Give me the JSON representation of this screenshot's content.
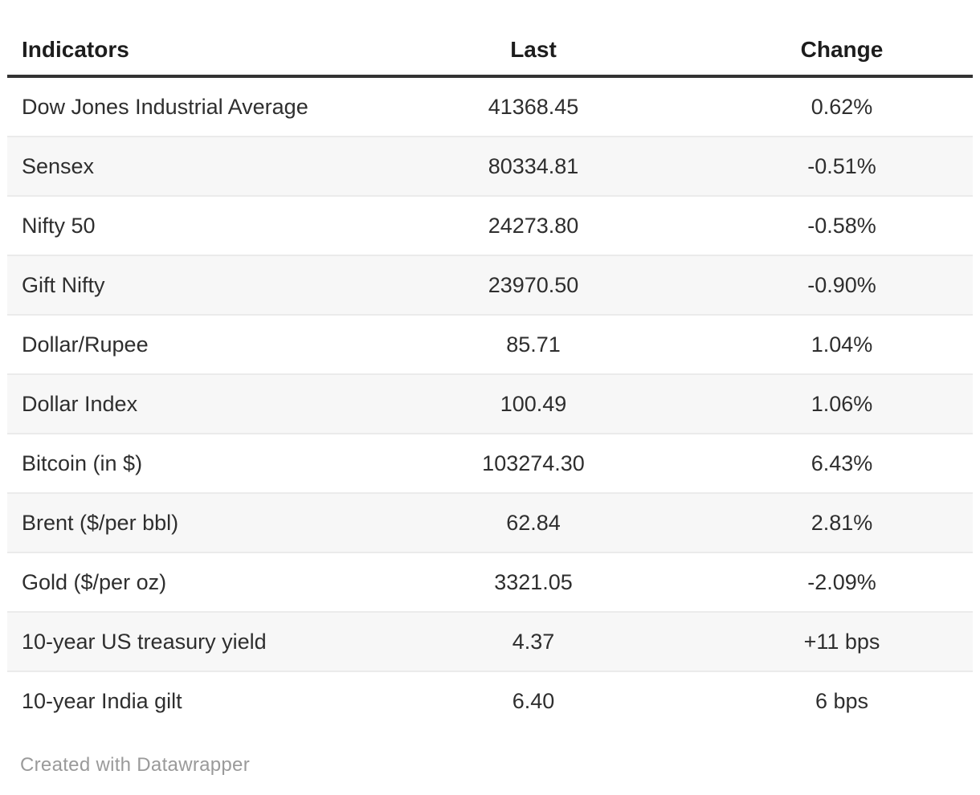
{
  "table": {
    "columns": [
      {
        "label": "Indicators",
        "align": "left"
      },
      {
        "label": "Last",
        "align": "center"
      },
      {
        "label": "Change",
        "align": "center"
      }
    ],
    "rows": [
      {
        "indicator": "Dow Jones Industrial Average",
        "last": "41368.45",
        "change": "0.62%"
      },
      {
        "indicator": "Sensex",
        "last": "80334.81",
        "change": "-0.51%"
      },
      {
        "indicator": "Nifty 50",
        "last": "24273.80",
        "change": "-0.58%"
      },
      {
        "indicator": "Gift Nifty",
        "last": "23970.50",
        "change": "-0.90%"
      },
      {
        "indicator": "Dollar/Rupee",
        "last": "85.71",
        "change": "1.04%"
      },
      {
        "indicator": "Dollar Index",
        "last": "100.49",
        "change": "1.06%"
      },
      {
        "indicator": "Bitcoin (in $)",
        "last": "103274.30",
        "change": "6.43%"
      },
      {
        "indicator": "Brent ($/per bbl)",
        "last": "62.84",
        "change": "2.81%"
      },
      {
        "indicator": "Gold ($/per oz)",
        "last": "3321.05",
        "change": "-2.09%"
      },
      {
        "indicator": "10-year US treasury yield",
        "last": "4.37",
        "change": "+11 bps"
      },
      {
        "indicator": "10-year India gilt",
        "last": "6.40",
        "change": "6 bps"
      }
    ]
  },
  "footer": {
    "attribution": "Created with Datawrapper"
  },
  "colors": {
    "header_text": "#1d1d1d",
    "body_text": "#2e2e2e",
    "header_rule": "#333333",
    "row_stripe": "#f7f7f7",
    "row_border": "#ebebeb",
    "footer_text": "#9a9a9a"
  },
  "chart_data": {
    "type": "table",
    "title": "",
    "columns": [
      "Indicators",
      "Last",
      "Change"
    ],
    "rows": [
      [
        "Dow Jones Industrial Average",
        41368.45,
        "0.62%"
      ],
      [
        "Sensex",
        80334.81,
        "-0.51%"
      ],
      [
        "Nifty 50",
        24273.8,
        "-0.58%"
      ],
      [
        "Gift Nifty",
        23970.5,
        "-0.90%"
      ],
      [
        "Dollar/Rupee",
        85.71,
        "1.04%"
      ],
      [
        "Dollar Index",
        100.49,
        "1.06%"
      ],
      [
        "Bitcoin (in $)",
        103274.3,
        "6.43%"
      ],
      [
        "Brent ($/per bbl)",
        62.84,
        "2.81%"
      ],
      [
        "Gold ($/per oz)",
        3321.05,
        "-2.09%"
      ],
      [
        "10-year US treasury yield",
        4.37,
        "+11 bps"
      ],
      [
        "10-year India gilt",
        6.4,
        "6 bps"
      ]
    ],
    "layout_hints": {
      "striped_rows": true,
      "first_column_align": "left",
      "numeric_columns_align": "center",
      "attribution": "Created with Datawrapper"
    }
  }
}
